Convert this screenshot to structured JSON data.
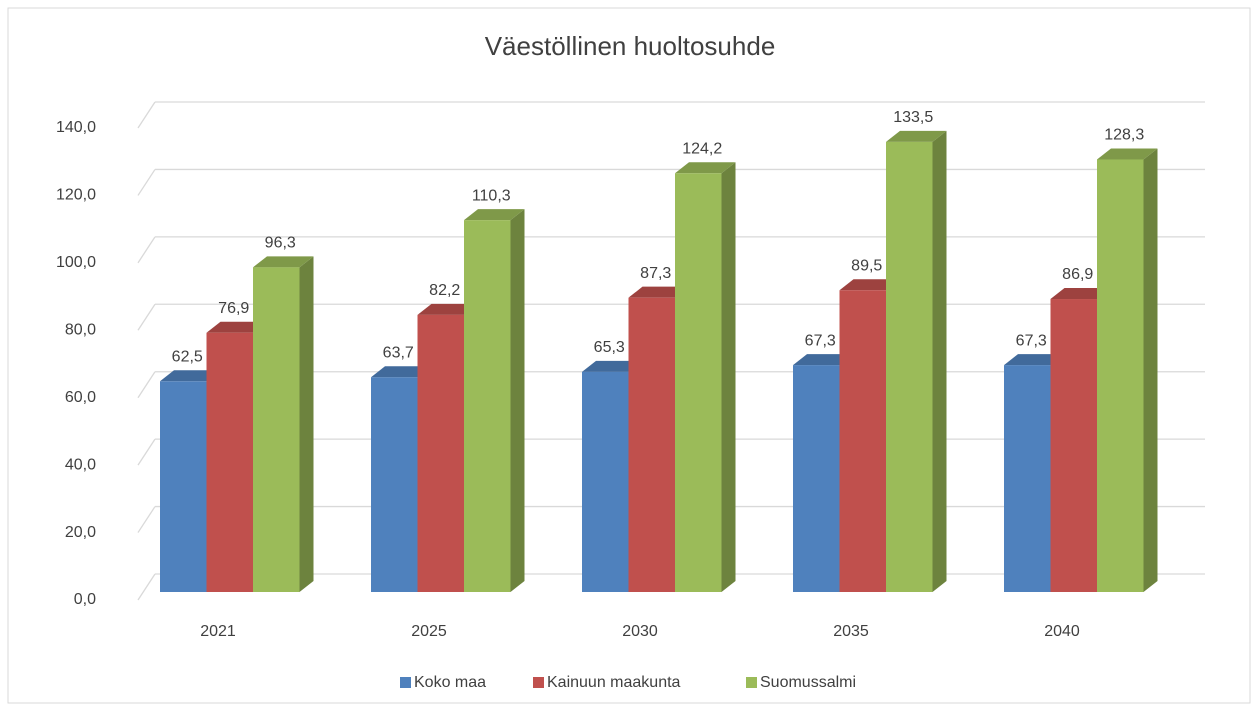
{
  "chart_data": {
    "type": "bar3d",
    "title": "Väestöllinen huoltosuhde",
    "categories": [
      "2021",
      "2025",
      "2030",
      "2035",
      "2040"
    ],
    "series": [
      {
        "name": "Koko maa",
        "color": "#4f81bd",
        "values": [
          62.5,
          63.7,
          65.3,
          67.3,
          67.3
        ],
        "value_labels": [
          "62,5",
          "63,7",
          "65,3",
          "67,3",
          "67,3"
        ]
      },
      {
        "name": "Kainuun maakunta",
        "color": "#c0504d",
        "values": [
          76.9,
          82.2,
          87.3,
          89.5,
          86.9
        ],
        "value_labels": [
          "76,9",
          "82,2",
          "87,3",
          "89,5",
          "86,9"
        ]
      },
      {
        "name": "Suomussalmi",
        "color": "#9bbb59",
        "values": [
          96.3,
          110.3,
          124.2,
          133.5,
          128.3
        ],
        "value_labels": [
          "96,3",
          "110,3",
          "124,2",
          "133,5",
          "128,3"
        ]
      }
    ],
    "ylim": [
      0,
      140
    ],
    "yticks": [
      {
        "value": 0,
        "label": "0,0"
      },
      {
        "value": 20,
        "label": "20,0"
      },
      {
        "value": 40,
        "label": "40,0"
      },
      {
        "value": 60,
        "label": "60,0"
      },
      {
        "value": 80,
        "label": "80,0"
      },
      {
        "value": 100,
        "label": "100,0"
      },
      {
        "value": 120,
        "label": "120,0"
      },
      {
        "value": 140,
        "label": "140,0"
      }
    ],
    "grid": true,
    "legend": "bottom"
  }
}
